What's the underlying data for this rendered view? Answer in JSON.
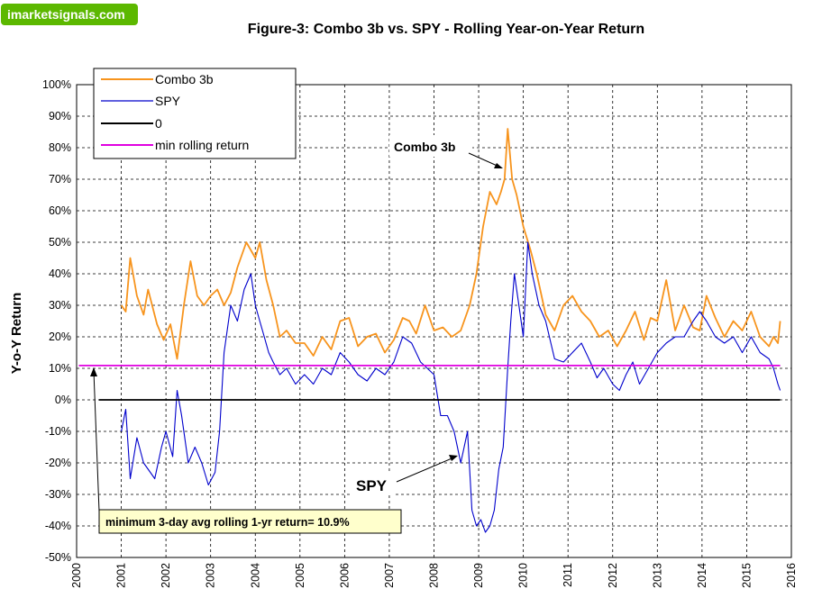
{
  "brand": {
    "logo_text": "imarketsignals.com",
    "logo_bg": "#5cb800"
  },
  "chart_data": {
    "type": "line",
    "title": "Figure-3:  Combo 3b  vs.  SPY   -  Rolling Year-on-Year  Return",
    "xlabel": "",
    "ylabel": "Y-o-Y Return",
    "xlim": [
      2000,
      2016
    ],
    "ylim": [
      -50,
      100
    ],
    "x_ticks": [
      "2000",
      "2001",
      "2002",
      "2003",
      "2004",
      "2005",
      "2006",
      "2007",
      "2008",
      "2009",
      "2010",
      "2011",
      "2012",
      "2013",
      "2014",
      "2015",
      "2016"
    ],
    "y_ticks": [
      "-50%",
      "-40%",
      "-30%",
      "-20%",
      "-10%",
      "0%",
      "10%",
      "20%",
      "30%",
      "40%",
      "50%",
      "60%",
      "70%",
      "80%",
      "90%",
      "100%"
    ],
    "grid": true,
    "legend_position": "top-left",
    "legend": [
      "Combo 3b",
      "SPY",
      "0",
      "min rolling return"
    ],
    "series": [
      {
        "name": "Combo 3b",
        "color": "#f7941d",
        "x": [
          2001.0,
          2001.1,
          2001.2,
          2001.35,
          2001.5,
          2001.6,
          2001.8,
          2001.95,
          2002.1,
          2002.25,
          2002.4,
          2002.55,
          2002.7,
          2002.85,
          2003.0,
          2003.15,
          2003.3,
          2003.45,
          2003.6,
          2003.8,
          2004.0,
          2004.1,
          2004.25,
          2004.4,
          2004.55,
          2004.7,
          2004.9,
          2005.1,
          2005.3,
          2005.5,
          2005.7,
          2005.9,
          2006.1,
          2006.3,
          2006.5,
          2006.7,
          2006.9,
          2007.1,
          2007.3,
          2007.45,
          2007.6,
          2007.8,
          2008.0,
          2008.2,
          2008.4,
          2008.6,
          2008.8,
          2008.95,
          2009.1,
          2009.25,
          2009.4,
          2009.5,
          2009.58,
          2009.65,
          2009.75,
          2009.85,
          2010.0,
          2010.15,
          2010.3,
          2010.5,
          2010.7,
          2010.9,
          2011.1,
          2011.3,
          2011.5,
          2011.7,
          2011.9,
          2012.1,
          2012.3,
          2012.5,
          2012.7,
          2012.85,
          2013.0,
          2013.2,
          2013.4,
          2013.6,
          2013.8,
          2013.95,
          2014.1,
          2014.3,
          2014.5,
          2014.7,
          2014.9,
          2015.1,
          2015.3,
          2015.5,
          2015.6,
          2015.7,
          2015.75
        ],
        "y": [
          30,
          28,
          45,
          33,
          27,
          35,
          24,
          19,
          24,
          13,
          30,
          44,
          33,
          30,
          33,
          35,
          30,
          34,
          42,
          50,
          45,
          50,
          38,
          30,
          20,
          22,
          18,
          18,
          14,
          20,
          16,
          25,
          26,
          17,
          20,
          21,
          15,
          19,
          26,
          25,
          21,
          30,
          22,
          23,
          20,
          22,
          30,
          40,
          55,
          66,
          62,
          66,
          70,
          86,
          70,
          65,
          55,
          48,
          40,
          27,
          22,
          30,
          33,
          28,
          25,
          20,
          22,
          17,
          22,
          28,
          19,
          26,
          25,
          38,
          22,
          30,
          23,
          22,
          33,
          26,
          20,
          25,
          22,
          28,
          20,
          17,
          20,
          18,
          25
        ]
      },
      {
        "name": "SPY",
        "color": "#0000cc",
        "x": [
          2001.0,
          2001.1,
          2001.2,
          2001.35,
          2001.5,
          2001.6,
          2001.75,
          2001.9,
          2002.0,
          2002.15,
          2002.25,
          2002.35,
          2002.5,
          2002.65,
          2002.8,
          2002.95,
          2003.1,
          2003.2,
          2003.3,
          2003.45,
          2003.6,
          2003.75,
          2003.9,
          2004.0,
          2004.1,
          2004.2,
          2004.3,
          2004.4,
          2004.55,
          2004.7,
          2004.9,
          2005.1,
          2005.3,
          2005.5,
          2005.7,
          2005.9,
          2006.1,
          2006.3,
          2006.5,
          2006.7,
          2006.9,
          2007.1,
          2007.3,
          2007.5,
          2007.7,
          2007.85,
          2008.0,
          2008.15,
          2008.3,
          2008.45,
          2008.6,
          2008.75,
          2008.85,
          2008.95,
          2009.05,
          2009.15,
          2009.25,
          2009.35,
          2009.45,
          2009.55,
          2009.65,
          2009.72,
          2009.8,
          2009.9,
          2010.0,
          2010.1,
          2010.2,
          2010.35,
          2010.5,
          2010.7,
          2010.9,
          2011.1,
          2011.3,
          2011.5,
          2011.65,
          2011.8,
          2012.0,
          2012.15,
          2012.3,
          2012.45,
          2012.6,
          2012.8,
          2013.0,
          2013.2,
          2013.4,
          2013.6,
          2013.8,
          2013.95,
          2014.1,
          2014.3,
          2014.5,
          2014.7,
          2014.9,
          2015.1,
          2015.3,
          2015.5,
          2015.6,
          2015.7,
          2015.75
        ],
        "y": [
          -10,
          -3,
          -25,
          -12,
          -20,
          -22,
          -25,
          -15,
          -10,
          -18,
          3,
          -5,
          -20,
          -15,
          -20,
          -27,
          -23,
          -10,
          15,
          30,
          25,
          35,
          40,
          30,
          25,
          20,
          15,
          12,
          8,
          10,
          5,
          8,
          5,
          10,
          8,
          15,
          12,
          8,
          6,
          10,
          8,
          12,
          20,
          18,
          12,
          10,
          8,
          -5,
          -5,
          -10,
          -20,
          -10,
          -35,
          -40,
          -38,
          -42,
          -40,
          -35,
          -22,
          -15,
          10,
          25,
          40,
          30,
          20,
          50,
          40,
          30,
          25,
          13,
          12,
          15,
          18,
          12,
          7,
          10,
          5,
          3,
          8,
          12,
          5,
          10,
          15,
          18,
          20,
          20,
          25,
          28,
          25,
          20,
          18,
          20,
          15,
          20,
          15,
          13,
          10,
          5,
          3
        ]
      },
      {
        "name": "0",
        "color": "#000000",
        "x": [
          2000.5,
          2015.75
        ],
        "y": [
          0,
          0
        ]
      },
      {
        "name": "min rolling return",
        "color": "#e000e0",
        "x": [
          2000.05,
          2015.75
        ],
        "y": [
          10.9,
          10.9
        ]
      }
    ],
    "annotations": [
      {
        "text": "Combo 3b",
        "x": 2009.45,
        "y": 73
      },
      {
        "text": "SPY",
        "x": 2008.5,
        "y": -19
      },
      {
        "text": "minimum 3-day avg rolling 1-yr return= 10.9%",
        "x": 2000.5,
        "y": 10.9
      }
    ]
  }
}
